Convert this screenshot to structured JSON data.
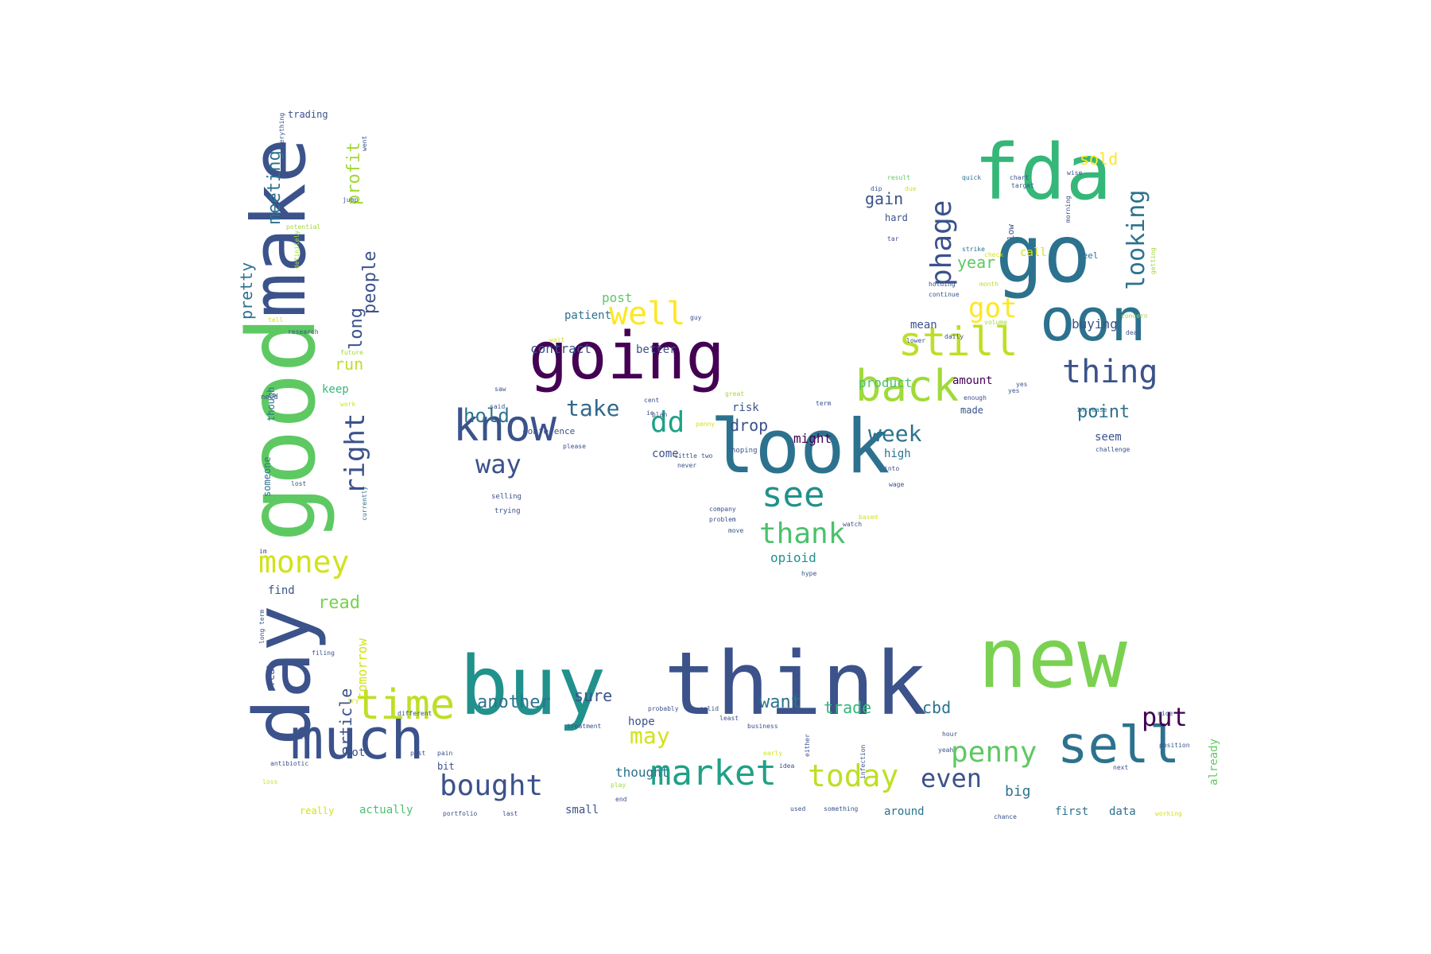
{
  "word_cloud": {
    "words": [
      {
        "text": "day",
        "color": "#3b528b"
      },
      {
        "text": "good",
        "color": "#5ec962"
      },
      {
        "text": "make",
        "color": "#3b528b"
      },
      {
        "text": "buy",
        "color": "#21918c"
      },
      {
        "text": "think",
        "color": "#3b528b"
      },
      {
        "text": "new",
        "color": "#7ad151"
      },
      {
        "text": "look",
        "color": "#2c728e"
      },
      {
        "text": "fda",
        "color": "#35b779"
      },
      {
        "text": "go",
        "color": "#2c728e"
      },
      {
        "text": "going",
        "color": "#440154"
      },
      {
        "text": "oon",
        "color": "#2c728e"
      },
      {
        "text": "much",
        "color": "#3b528b"
      },
      {
        "text": "sell",
        "color": "#2c728e"
      },
      {
        "text": "know",
        "color": "#3b528b"
      },
      {
        "text": "back",
        "color": "#a0da39"
      },
      {
        "text": "still",
        "color": "#bddf26"
      },
      {
        "text": "time",
        "color": "#bddf26"
      },
      {
        "text": "market",
        "color": "#1fa187"
      },
      {
        "text": "thing",
        "color": "#3b528b"
      },
      {
        "text": "see",
        "color": "#21918c"
      },
      {
        "text": "money",
        "color": "#d2e21b"
      },
      {
        "text": "well",
        "color": "#fde725"
      },
      {
        "text": "today",
        "color": "#bddf26"
      },
      {
        "text": "thank",
        "color": "#4ac16d"
      },
      {
        "text": "bought",
        "color": "#3b528b"
      },
      {
        "text": "penny",
        "color": "#5ec962"
      },
      {
        "text": "even",
        "color": "#3b528b"
      },
      {
        "text": "phage",
        "color": "#3b528b"
      },
      {
        "text": "got",
        "color": "#fde725"
      },
      {
        "text": "put",
        "color": "#440154"
      },
      {
        "text": "way",
        "color": "#3b528b"
      },
      {
        "text": "dd",
        "color": "#1fa187"
      },
      {
        "text": "take",
        "color": "#31688e"
      },
      {
        "text": "right",
        "color": "#3b528b"
      },
      {
        "text": "may",
        "color": "#d2e21b"
      },
      {
        "text": "week",
        "color": "#2c728e"
      },
      {
        "text": "another",
        "color": "#2c728e"
      },
      {
        "text": "hold",
        "color": "#2c728e"
      },
      {
        "text": "looking",
        "color": "#2c728e"
      },
      {
        "text": "read",
        "color": "#7ad151"
      },
      {
        "text": "article",
        "color": "#3b528b"
      },
      {
        "text": "point",
        "color": "#2c728e"
      },
      {
        "text": "long",
        "color": "#3b528b"
      },
      {
        "text": "people",
        "color": "#3b528b"
      },
      {
        "text": "meeting",
        "color": "#2c728e"
      },
      {
        "text": "pretty",
        "color": "#2c728e"
      },
      {
        "text": "profit",
        "color": "#a0da39"
      },
      {
        "text": "want",
        "color": "#2c728e"
      },
      {
        "text": "trade",
        "color": "#35b779"
      },
      {
        "text": "cbd",
        "color": "#2c728e"
      },
      {
        "text": "drop",
        "color": "#3b528b"
      },
      {
        "text": "sure",
        "color": "#3b528b"
      },
      {
        "text": "year",
        "color": "#5ec962"
      },
      {
        "text": "gain",
        "color": "#3b528b"
      },
      {
        "text": "sold",
        "color": "#fde725"
      },
      {
        "text": "run",
        "color": "#bddf26"
      },
      {
        "text": "tomorrow",
        "color": "#d2e21b"
      },
      {
        "text": "big",
        "color": "#2c728e"
      },
      {
        "text": "might",
        "color": "#440154"
      },
      {
        "text": "contract",
        "color": "#3b528b"
      },
      {
        "text": "post",
        "color": "#5ec962"
      },
      {
        "text": "patient",
        "color": "#2c728e"
      },
      {
        "text": "better",
        "color": "#3b528b"
      },
      {
        "text": "product",
        "color": "#4ac16d"
      },
      {
        "text": "amount",
        "color": "#440154"
      },
      {
        "text": "mean",
        "color": "#3b528b"
      },
      {
        "text": "buying",
        "color": "#3b528b"
      },
      {
        "text": "call",
        "color": "#d2e21b"
      },
      {
        "text": "high",
        "color": "#2c728e"
      },
      {
        "text": "opioid",
        "color": "#21918c"
      },
      {
        "text": "thought",
        "color": "#2c728e"
      },
      {
        "text": "hope",
        "color": "#3b528b"
      },
      {
        "text": "keep",
        "color": "#35b779"
      },
      {
        "text": "find",
        "color": "#3b528b"
      },
      {
        "text": "lot",
        "color": "#3b528b"
      },
      {
        "text": "actually",
        "color": "#4ac16d"
      },
      {
        "text": "really",
        "color": "#d2e21b"
      },
      {
        "text": "small",
        "color": "#3b528b"
      },
      {
        "text": "around",
        "color": "#2c728e"
      },
      {
        "text": "first",
        "color": "#2c728e"
      },
      {
        "text": "data",
        "color": "#2c728e"
      },
      {
        "text": "seem",
        "color": "#3b528b"
      },
      {
        "text": "already",
        "color": "#5ec962"
      },
      {
        "text": "risk",
        "color": "#3b528b"
      },
      {
        "text": "come",
        "color": "#3b528b"
      },
      {
        "text": "made",
        "color": "#3b528b"
      },
      {
        "text": "hard",
        "color": "#3b528b"
      },
      {
        "text": "trading",
        "color": "#3b528b"
      },
      {
        "text": "someone",
        "color": "#2c728e"
      },
      {
        "text": "though",
        "color": "#2c728e"
      },
      {
        "text": "real",
        "color": "#3b528b"
      },
      {
        "text": "bit",
        "color": "#3b528b"
      },
      {
        "text": "conference",
        "color": "#3b528b"
      },
      {
        "text": "low",
        "color": "#3b528b"
      },
      {
        "text": "feel",
        "color": "#2c728e"
      },
      {
        "text": "need",
        "color": "#3b528b"
      },
      {
        "text": "hoping",
        "color": "#3b528b"
      },
      {
        "text": "selling",
        "color": "#3b528b"
      },
      {
        "text": "trying",
        "color": "#3b528b"
      },
      {
        "text": "quick",
        "color": "#2c728e"
      },
      {
        "text": "chart",
        "color": "#3b528b"
      },
      {
        "text": "target",
        "color": "#3b528b"
      },
      {
        "text": "result",
        "color": "#5ec962"
      },
      {
        "text": "due",
        "color": "#d2e21b"
      },
      {
        "text": "dip",
        "color": "#3b528b"
      },
      {
        "text": "tar",
        "color": "#3b528b"
      },
      {
        "text": "strike",
        "color": "#2c728e"
      },
      {
        "text": "holding",
        "color": "#3b528b"
      },
      {
        "text": "month",
        "color": "#bddf26"
      },
      {
        "text": "continue",
        "color": "#3b528b"
      },
      {
        "text": "check",
        "color": "#d2e21b"
      },
      {
        "text": "daily",
        "color": "#3b528b"
      },
      {
        "text": "volume",
        "color": "#a0da39"
      },
      {
        "text": "lower",
        "color": "#3b528b"
      },
      {
        "text": "enough",
        "color": "#3b528b"
      },
      {
        "text": "yes",
        "color": "#3b528b"
      },
      {
        "text": "increase",
        "color": "#2c728e"
      },
      {
        "text": "deal",
        "color": "#3b528b"
      },
      {
        "text": "concern",
        "color": "#a0da39"
      },
      {
        "text": "getting",
        "color": "#a0da39"
      },
      {
        "text": "morning",
        "color": "#3b528b"
      },
      {
        "text": "wise",
        "color": "#3b528b"
      },
      {
        "text": "potential",
        "color": "#a0da39"
      },
      {
        "text": "jump",
        "color": "#3b528b"
      },
      {
        "text": "everything",
        "color": "#3b528b"
      },
      {
        "text": "went",
        "color": "#3b528b"
      },
      {
        "text": "definitely",
        "color": "#a0da39"
      },
      {
        "text": "tell",
        "color": "#d2e21b"
      },
      {
        "text": "research",
        "color": "#3b528b"
      },
      {
        "text": "future",
        "color": "#a0da39"
      },
      {
        "text": "work",
        "color": "#d2e21b"
      },
      {
        "text": "lost",
        "color": "#3b528b"
      },
      {
        "text": "currently",
        "color": "#2c728e"
      },
      {
        "text": "im",
        "color": "#3b528b"
      },
      {
        "text": "long term",
        "color": "#3b528b"
      },
      {
        "text": "filing",
        "color": "#3b528b"
      },
      {
        "text": "try",
        "color": "#d2e21b"
      },
      {
        "text": "sweet",
        "color": "#3b528b"
      },
      {
        "text": "antibiotic",
        "color": "#3b528b"
      },
      {
        "text": "loss",
        "color": "#d2e21b"
      },
      {
        "text": "different",
        "color": "#3b528b"
      },
      {
        "text": "treatment",
        "color": "#3b528b"
      },
      {
        "text": "past",
        "color": "#3b528b"
      },
      {
        "text": "pain",
        "color": "#3b528b"
      },
      {
        "text": "probably",
        "color": "#3b528b"
      },
      {
        "text": "solid",
        "color": "#3b528b"
      },
      {
        "text": "business",
        "color": "#3b528b"
      },
      {
        "text": "early",
        "color": "#d2e21b"
      },
      {
        "text": "play",
        "color": "#a0da39"
      },
      {
        "text": "end",
        "color": "#3b528b"
      },
      {
        "text": "portfolio",
        "color": "#3b528b"
      },
      {
        "text": "last",
        "color": "#3b528b"
      },
      {
        "text": "idea",
        "color": "#3b528b"
      },
      {
        "text": "either",
        "color": "#3b528b"
      },
      {
        "text": "infection",
        "color": "#3b528b"
      },
      {
        "text": "hour",
        "color": "#3b528b"
      },
      {
        "text": "yeah",
        "color": "#3b528b"
      },
      {
        "text": "used",
        "color": "#3b528b"
      },
      {
        "text": "something",
        "color": "#3b528b"
      },
      {
        "text": "chance",
        "color": "#3b528b"
      },
      {
        "text": "nice",
        "color": "#3b528b"
      },
      {
        "text": "position",
        "color": "#3b528b"
      },
      {
        "text": "next",
        "color": "#3b528b"
      },
      {
        "text": "working",
        "color": "#d2e21b"
      },
      {
        "text": "great",
        "color": "#a0da39"
      },
      {
        "text": "cent",
        "color": "#3b528b"
      },
      {
        "text": "ie",
        "color": "#3b528b"
      },
      {
        "text": "plan",
        "color": "#3b528b"
      },
      {
        "text": "please",
        "color": "#3b528b"
      },
      {
        "text": "company",
        "color": "#3b528b"
      },
      {
        "text": "problem",
        "color": "#3b528b"
      },
      {
        "text": "never",
        "color": "#3b528b"
      },
      {
        "text": "little",
        "color": "#3b528b"
      },
      {
        "text": "based",
        "color": "#d2e21b"
      },
      {
        "text": "watch",
        "color": "#3b528b"
      },
      {
        "text": "move",
        "color": "#3b528b"
      },
      {
        "text": "hype",
        "color": "#3b528b"
      },
      {
        "text": "term",
        "color": "#3b528b"
      },
      {
        "text": "guy",
        "color": "#3b528b"
      },
      {
        "text": "said",
        "color": "#3b528b"
      },
      {
        "text": "wait",
        "color": "#d2e21b"
      },
      {
        "text": "saw",
        "color": "#3b528b"
      },
      {
        "text": "two",
        "color": "#3b528b"
      },
      {
        "text": "penny2",
        "color": "#d2e21b"
      },
      {
        "text": "into",
        "color": "#3b528b"
      },
      {
        "text": "wage",
        "color": "#3b528b"
      },
      {
        "text": "yes2",
        "color": "#3b528b"
      },
      {
        "text": "challenge",
        "color": "#3b528b"
      },
      {
        "text": "least",
        "color": "#3b528b"
      }
    ]
  }
}
